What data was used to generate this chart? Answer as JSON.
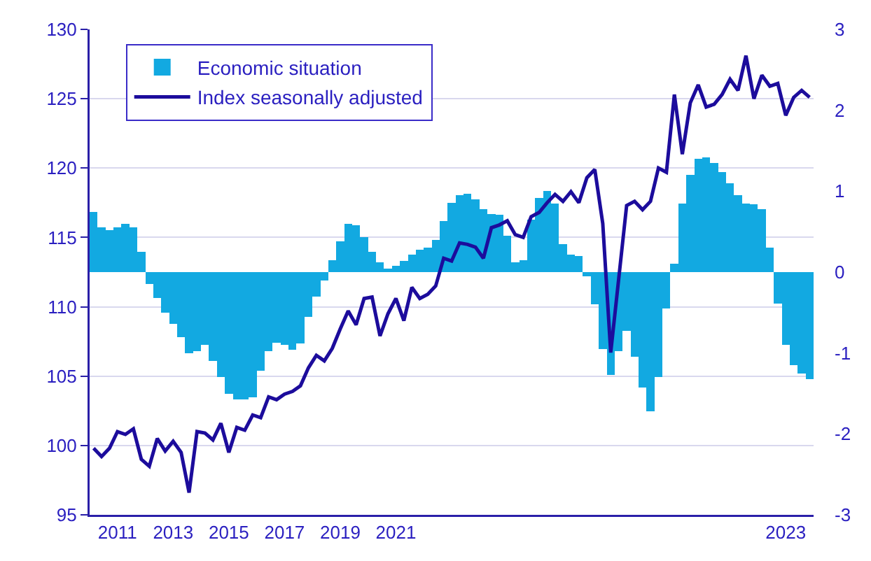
{
  "chart_data": {
    "type": "bar",
    "categories": [
      null,
      null,
      null,
      "2011",
      null,
      null,
      null,
      null,
      null,
      null,
      "2013",
      null,
      null,
      null,
      null,
      null,
      null,
      "2015",
      null,
      null,
      null,
      null,
      null,
      null,
      "2017",
      null,
      null,
      null,
      null,
      null,
      null,
      "2019",
      null,
      null,
      null,
      null,
      null,
      null,
      "2021",
      null,
      null,
      null,
      null,
      null,
      null,
      null,
      null,
      null,
      null,
      null,
      null,
      null,
      null,
      null,
      null,
      null,
      null,
      null,
      null,
      null,
      null,
      null,
      null,
      null,
      null,
      null,
      null,
      null,
      null,
      null,
      null,
      null,
      null,
      null,
      null,
      null,
      null,
      null,
      null,
      null,
      null,
      null,
      null,
      null,
      null,
      null,
      null,
      "2023",
      null,
      null,
      null
    ],
    "series": [
      {
        "name": "Economic situation",
        "axis": "y2",
        "color": "#12a9e1",
        "values": [
          0.74,
          0.55,
          0.52,
          0.55,
          0.6,
          0.55,
          0.25,
          -0.15,
          -0.32,
          -0.5,
          -0.64,
          -0.8,
          -1.0,
          -0.98,
          -0.9,
          -1.1,
          -1.3,
          -1.5,
          -1.57,
          -1.57,
          -1.55,
          -1.22,
          -0.98,
          -0.87,
          -0.9,
          -0.96,
          -0.88,
          -0.55,
          -0.3,
          -0.1,
          0.15,
          0.38,
          0.6,
          0.58,
          0.43,
          0.25,
          0.12,
          0.04,
          0.08,
          0.14,
          0.22,
          0.28,
          0.3,
          0.4,
          0.63,
          0.86,
          0.95,
          0.97,
          0.9,
          0.78,
          0.72,
          0.71,
          0.45,
          0.12,
          0.15,
          0.65,
          0.92,
          1.0,
          0.85,
          0.35,
          0.22,
          0.2,
          -0.05,
          -0.4,
          -0.95,
          -1.27,
          -0.98,
          -0.73,
          -1.05,
          -1.43,
          -1.72,
          -1.3,
          -0.45,
          0.1,
          0.85,
          1.2,
          1.4,
          1.42,
          1.35,
          1.24,
          1.1,
          0.95,
          0.85,
          0.84,
          0.78,
          0.3,
          -0.39,
          -0.9,
          -1.15,
          -1.25,
          -1.32
        ]
      },
      {
        "name": "Index seasonally adjusted",
        "type": "line",
        "color": "#1c0c9c",
        "values": [
          99.8,
          99.2,
          99.8,
          101.0,
          100.8,
          101.2,
          99.0,
          98.5,
          100.5,
          99.6,
          100.3,
          99.5,
          96.6,
          101.0,
          100.9,
          100.4,
          101.6,
          99.5,
          101.3,
          101.1,
          102.2,
          102.0,
          103.5,
          103.3,
          103.7,
          103.9,
          104.3,
          105.6,
          106.5,
          106.1,
          107.0,
          108.4,
          109.7,
          108.7,
          110.6,
          110.7,
          107.9,
          109.5,
          110.6,
          109.0,
          111.4,
          110.6,
          110.9,
          111.5,
          113.5,
          113.3,
          114.6,
          114.5,
          114.3,
          113.5,
          115.7,
          115.9,
          116.2,
          115.2,
          115.0,
          116.5,
          116.8,
          117.5,
          118.1,
          117.6,
          118.3,
          117.5,
          119.3,
          119.9,
          116.0,
          106.7,
          112.0,
          117.3,
          117.6,
          117.0,
          117.6,
          120.0,
          119.7,
          125.3,
          121.0,
          124.7,
          126.0,
          124.4,
          124.6,
          125.3,
          126.4,
          125.6,
          128.1,
          125.0,
          126.7,
          125.9,
          126.1,
          123.8,
          125.1,
          125.6,
          125.1
        ]
      }
    ],
    "ylim": [
      95,
      130
    ],
    "yticks": [
      95,
      100,
      105,
      110,
      115,
      120,
      125,
      130
    ],
    "y2lim": [
      -3,
      3
    ],
    "y2ticks": [
      -3,
      -2,
      -1,
      0,
      1,
      2,
      3
    ],
    "grid": "y",
    "legend": "top left",
    "marker": "none",
    "line_style": "solid"
  }
}
